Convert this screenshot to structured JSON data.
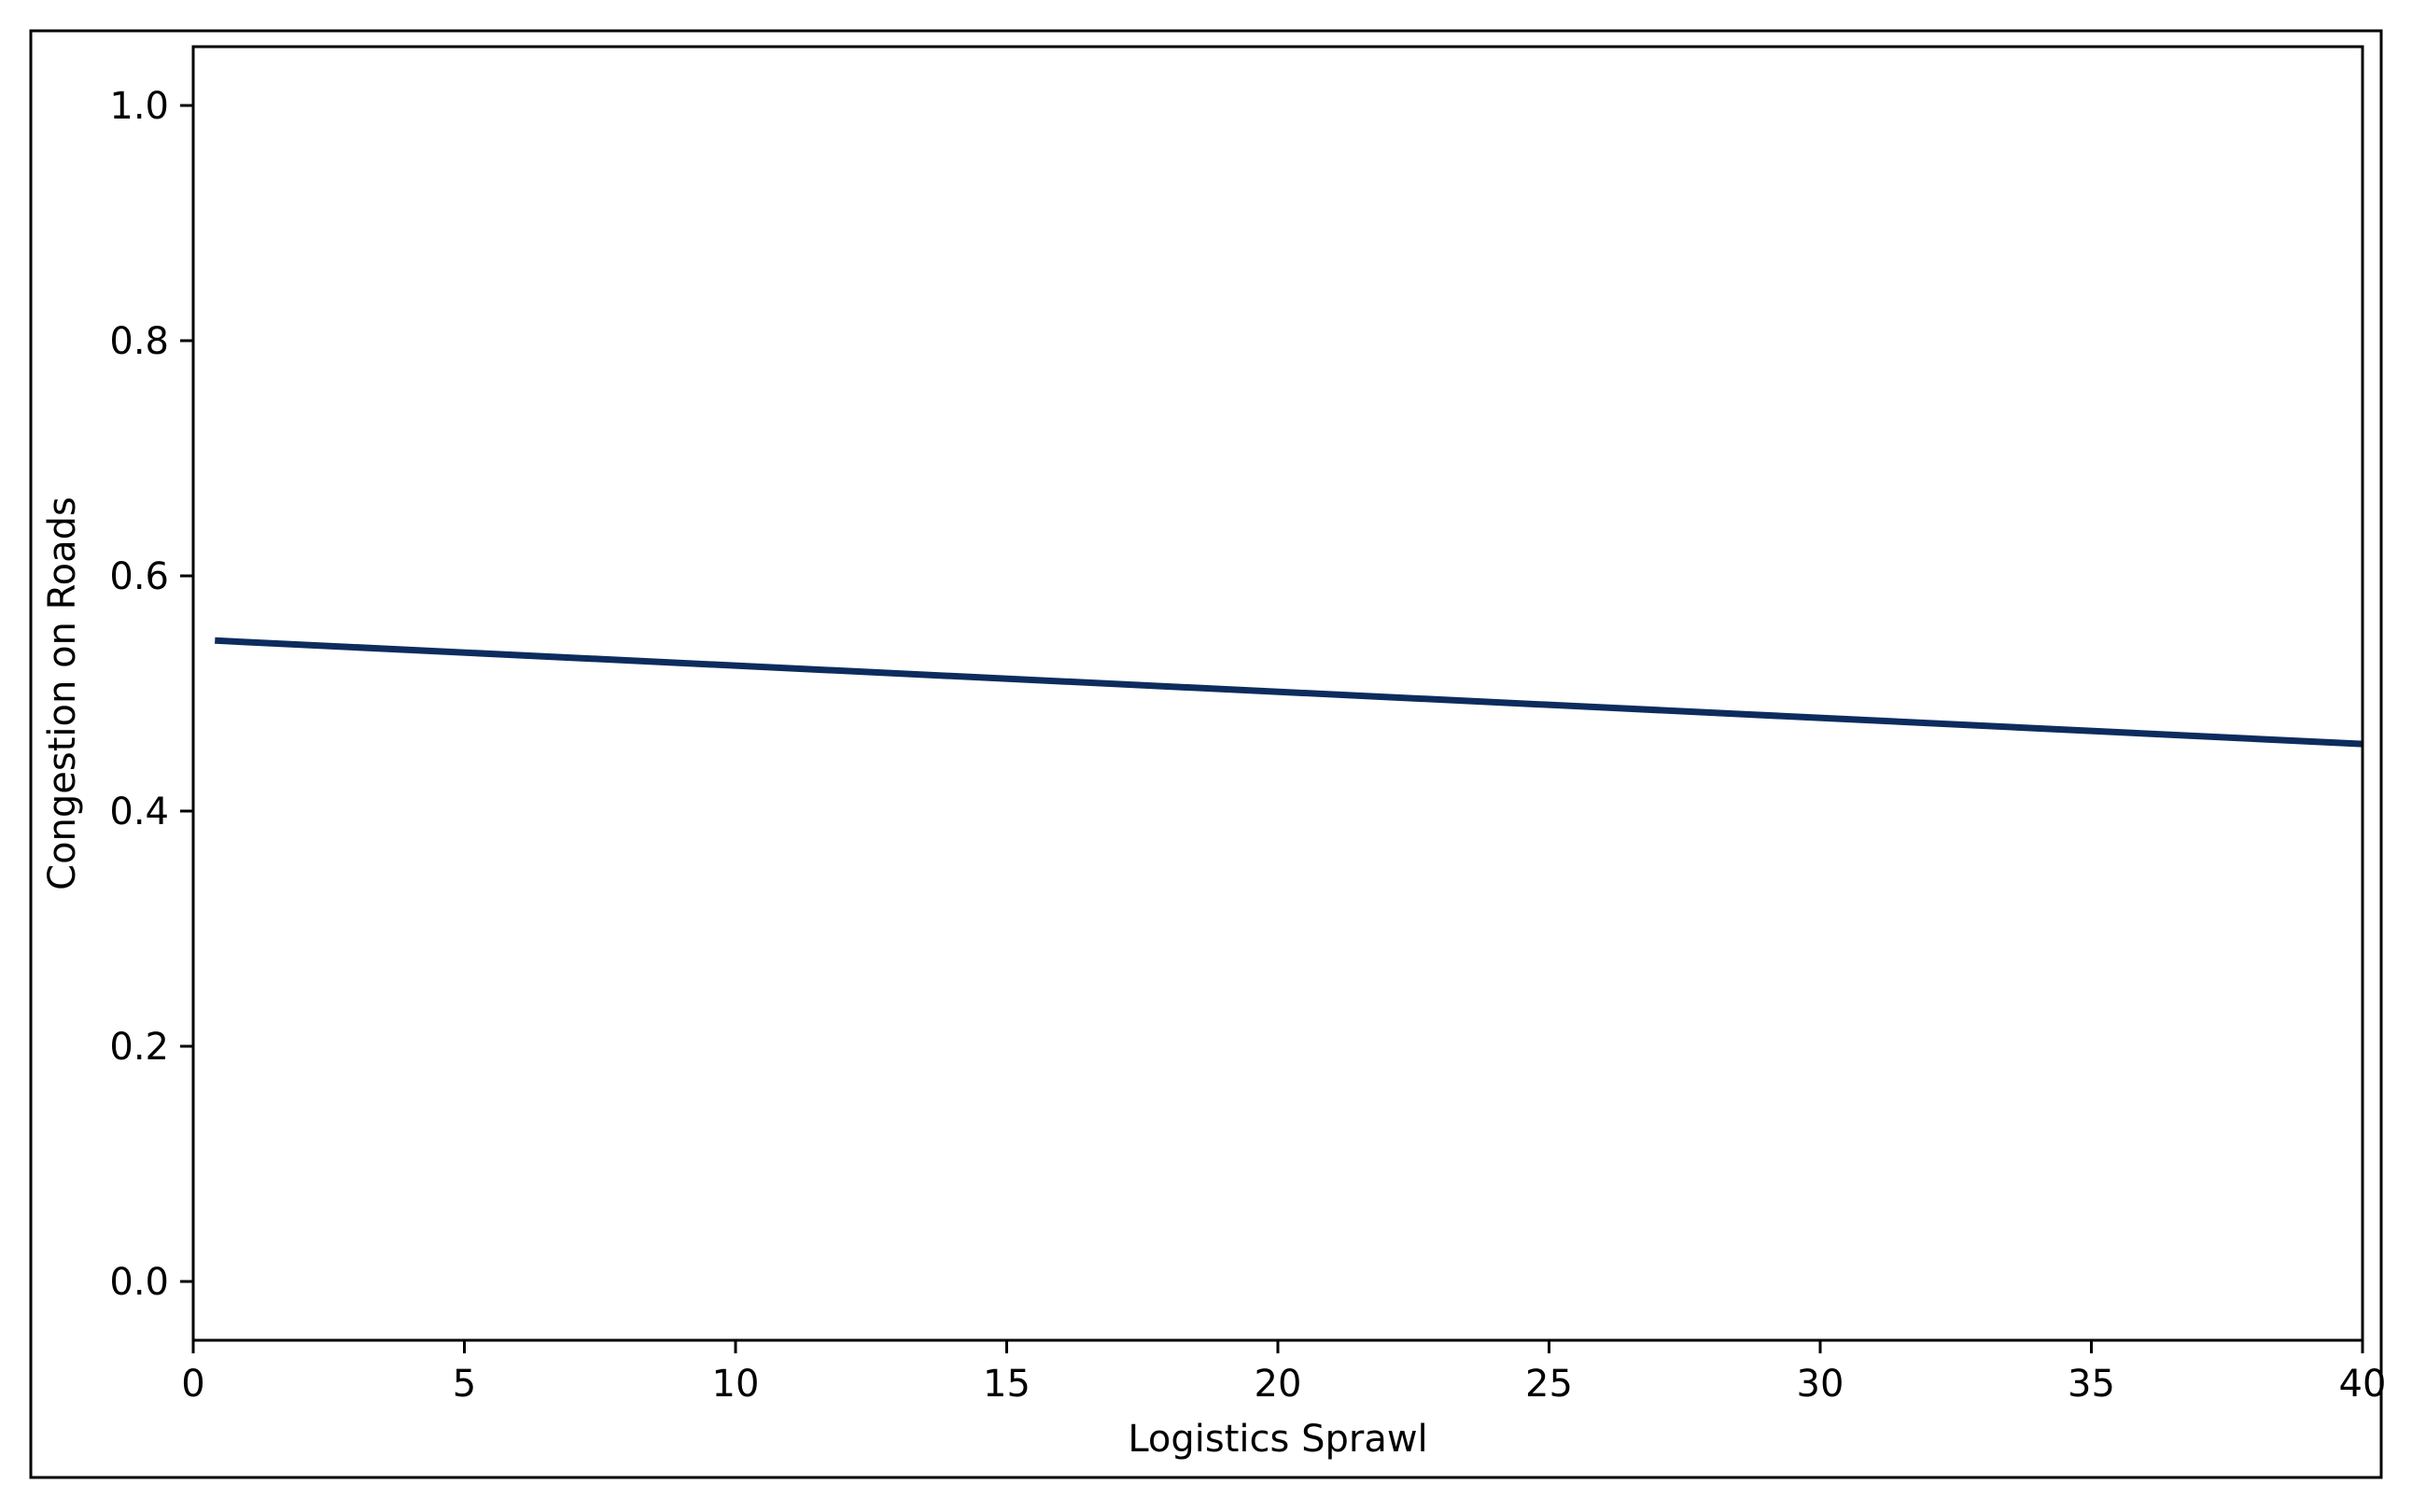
{
  "chart_data": {
    "type": "line",
    "title": "",
    "xlabel": "Logistics Sprawl",
    "ylabel": "Congestion on Roads",
    "xlim": [
      0,
      40
    ],
    "ylim": [
      -0.05,
      1.05
    ],
    "x_ticks": [
      "0",
      "5",
      "10",
      "15",
      "20",
      "25",
      "30",
      "35",
      "40"
    ],
    "y_ticks": [
      "0.0",
      "0.2",
      "0.4",
      "0.6",
      "0.8",
      "1.0"
    ],
    "grid": false,
    "legend": "none",
    "series": [
      {
        "x": [
          0.4,
          40
        ],
        "y": [
          0.545,
          0.457
        ],
        "color": "#0d2c5e"
      }
    ]
  }
}
